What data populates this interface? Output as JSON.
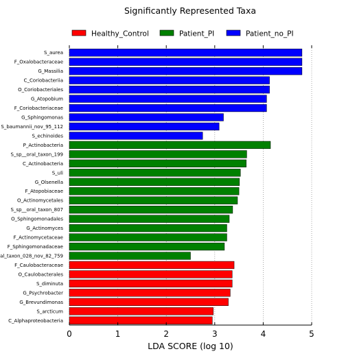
{
  "chart_data": {
    "type": "bar",
    "orientation": "horizontal",
    "title": "Significantly Represented Taxa",
    "xlabel": "LDA SCORE (log 10)",
    "ylabel": "",
    "xlim": [
      0,
      5
    ],
    "xticks": [
      "0",
      "1",
      "2",
      "3",
      "4",
      "5"
    ],
    "grid": "vertical dotted",
    "legend_position": "top",
    "groups": [
      {
        "name": "Healthy_Control",
        "color": "#ff0000"
      },
      {
        "name": "Patient_PI",
        "color": "#008000"
      },
      {
        "name": "Patient_no_PI",
        "color": "#0000ff"
      }
    ],
    "bars": [
      {
        "label": "S_aurea",
        "value": 4.8,
        "group": 2
      },
      {
        "label": "F_Oxalobacteraceae",
        "value": 4.8,
        "group": 2
      },
      {
        "label": "G_Massilia",
        "value": 4.8,
        "group": 2
      },
      {
        "label": "C_Coriobacteriia",
        "value": 4.13,
        "group": 2
      },
      {
        "label": "O_Coriobacteriales",
        "value": 4.13,
        "group": 2
      },
      {
        "label": "G_Atopobium",
        "value": 4.07,
        "group": 2
      },
      {
        "label": "F_Coriobacteriaceae",
        "value": 4.07,
        "group": 2
      },
      {
        "label": "G_Sphingomonas",
        "value": 3.18,
        "group": 2
      },
      {
        "label": "S_baumannii_nov_95_112",
        "value": 3.09,
        "group": 2
      },
      {
        "label": "S_echinoides",
        "value": 2.75,
        "group": 2
      },
      {
        "label": "P_Actinobacteria",
        "value": 4.15,
        "group": 1
      },
      {
        "label": "S_sp__oral_taxon_199",
        "value": 3.66,
        "group": 1
      },
      {
        "label": "C_Actinobacteria",
        "value": 3.65,
        "group": 1
      },
      {
        "label": "S_uli",
        "value": 3.53,
        "group": 1
      },
      {
        "label": "G_Olsenella",
        "value": 3.51,
        "group": 1
      },
      {
        "label": "F_Atopobiaceae",
        "value": 3.5,
        "group": 1
      },
      {
        "label": "O_Actinomycetales",
        "value": 3.47,
        "group": 1
      },
      {
        "label": "S_sp__oral_taxon_807",
        "value": 3.37,
        "group": 1
      },
      {
        "label": "O_Sphingomonadales",
        "value": 3.3,
        "group": 1
      },
      {
        "label": "G_Actinomyces",
        "value": 3.25,
        "group": 1
      },
      {
        "label": "F_Actinomycetaceae",
        "value": 3.25,
        "group": 1
      },
      {
        "label": "F_Sphingomonadaceae",
        "value": 3.2,
        "group": 1
      },
      {
        "label": "S_sp__oral_taxon_028_nov_82_759",
        "value": 2.5,
        "group": 1
      },
      {
        "label": "F_Caulobacteraceae",
        "value": 3.4,
        "group": 0
      },
      {
        "label": "O_Caulobacterales",
        "value": 3.36,
        "group": 0
      },
      {
        "label": "S_diminuta",
        "value": 3.36,
        "group": 0
      },
      {
        "label": "G_Psychrobacter",
        "value": 3.32,
        "group": 0
      },
      {
        "label": "G_Brevundimonas",
        "value": 3.28,
        "group": 0
      },
      {
        "label": "S_arcticum",
        "value": 2.97,
        "group": 0
      },
      {
        "label": "C_Alphaproteobacteria",
        "value": 2.95,
        "group": 0
      }
    ]
  }
}
